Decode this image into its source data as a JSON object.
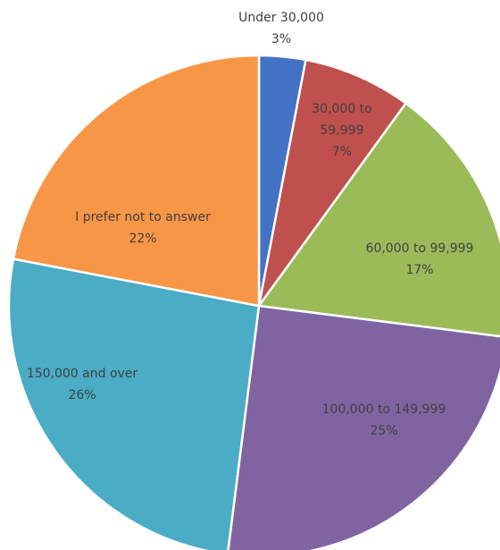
{
  "chart_data": {
    "type": "pie",
    "categories": [
      "Under 30,000",
      "30,000 to 59,999",
      "60,000 to 99,999",
      "100,000 to 149,999",
      "150,000 and over",
      "I prefer not to answer"
    ],
    "values": [
      3,
      7,
      17,
      25,
      26,
      22
    ],
    "value_labels": [
      "3%",
      "7%",
      "17%",
      "25%",
      "26%",
      "22%"
    ],
    "colors": [
      "#4472c4",
      "#c0504d",
      "#9bbb59",
      "#8064a2",
      "#4bacc6",
      "#f79646"
    ]
  }
}
